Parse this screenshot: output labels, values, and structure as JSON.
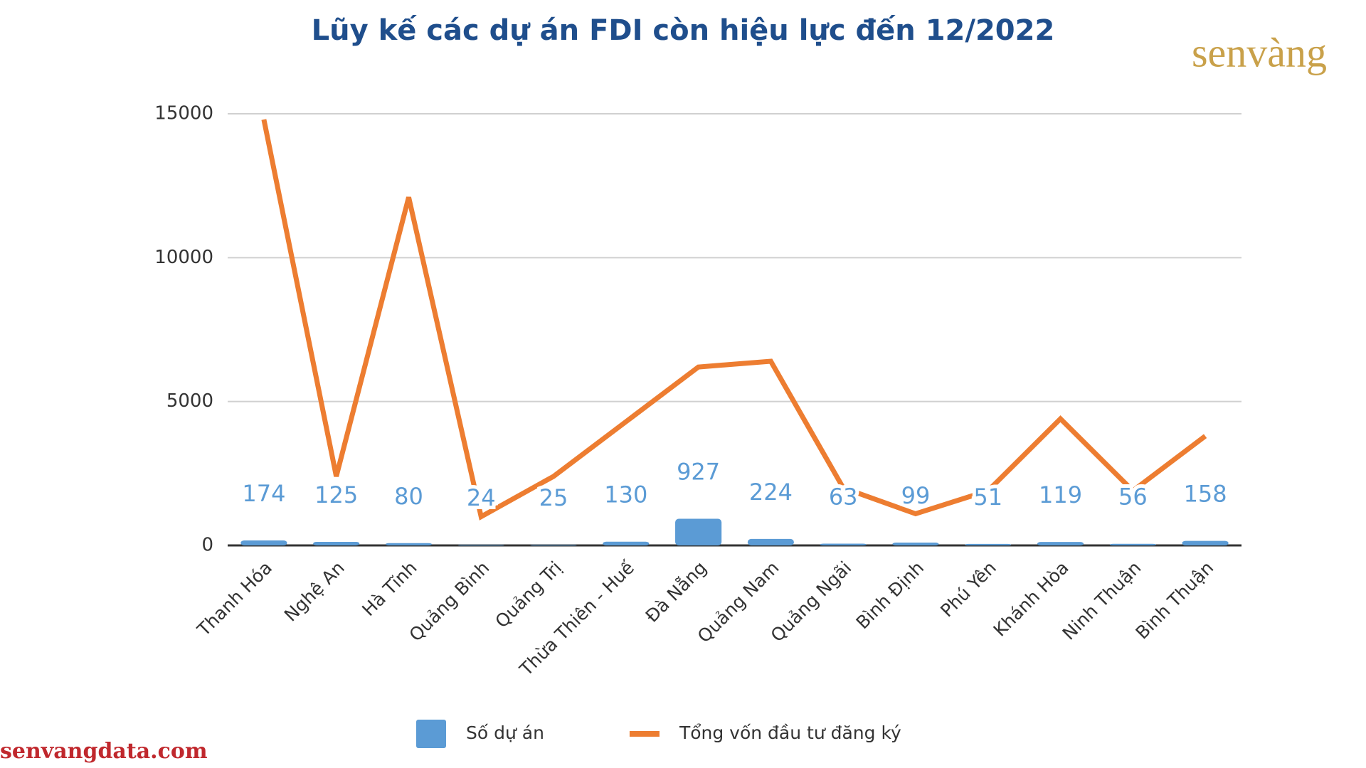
{
  "chart_data": {
    "type": "bar-line",
    "title": "Lũy kế các dự án FDI còn hiệu lực đến 12/2022",
    "logo": "senvàng",
    "source": "senvangdata.com",
    "categories": [
      "Thanh Hóa",
      "Nghệ An",
      "Hà Tĩnh",
      "Quảng Bình",
      "Quảng Trị",
      "Thừa Thiên - Huế",
      "Đà Nẵng",
      "Quảng Nam",
      "Quảng Ngãi",
      "Bình Định",
      "Phú Yên",
      "Khánh Hòa",
      "Ninh Thuận",
      "Bình Thuận"
    ],
    "series": [
      {
        "name": "Số dự án",
        "type": "bar",
        "color": "#5b9bd5",
        "values": [
          174,
          125,
          80,
          24,
          25,
          130,
          927,
          224,
          63,
          99,
          51,
          119,
          56,
          158
        ]
      },
      {
        "name": "Tổng vốn đầu tư đăng ký",
        "type": "line",
        "color": "#ed7d31",
        "values": [
          14800,
          2400,
          12100,
          1000,
          2400,
          4300,
          6200,
          6400,
          2000,
          1100,
          1900,
          4400,
          1900,
          3800
        ]
      }
    ],
    "ylim": [
      0,
      15000
    ],
    "yticks": [
      0,
      5000,
      10000,
      15000
    ],
    "grid": true,
    "legend": "bottom"
  }
}
